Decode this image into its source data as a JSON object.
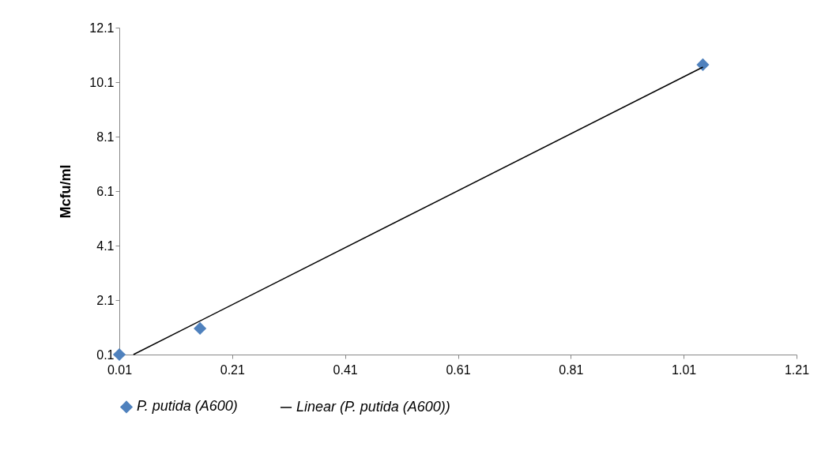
{
  "chart_data": {
    "type": "scatter",
    "ylabel": "Mcfu/ml",
    "xlim": [
      0.01,
      1.21
    ],
    "xticks": [
      0.01,
      0.21,
      0.41,
      0.61,
      0.81,
      1.01,
      1.21
    ],
    "ylim": [
      0.1,
      12.1
    ],
    "yticks": [
      0.1,
      2.1,
      4.1,
      6.1,
      8.1,
      10.1,
      12.1
    ],
    "legend": "bottom",
    "grid": false,
    "series": [
      {
        "name": "P. putida (A600)",
        "marker": "diamond",
        "color": "#4f81bd",
        "x": [
          0.01,
          0.153,
          1.044
        ],
        "values": [
          0.1,
          1.06,
          10.74
        ]
      },
      {
        "name": "Linear (P. putida (A600))",
        "type": "line",
        "marker": "none",
        "color": "#000000",
        "x": [
          0.035,
          1.044
        ],
        "values": [
          0.1,
          10.65
        ]
      }
    ]
  }
}
